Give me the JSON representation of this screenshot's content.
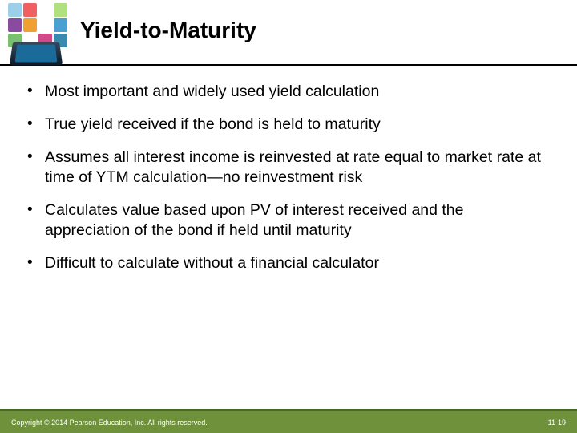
{
  "slide": {
    "title": "Yield-to-Maturity",
    "title_fontsize": 28,
    "title_weight": "bold",
    "title_color": "#000000",
    "header_rule_color": "#000000",
    "background_color": "#ffffff",
    "bullets": [
      "Most important and widely used yield calculation",
      "True yield received if the bond is held to maturity",
      "Assumes all interest income is reinvested at rate equal to market rate at time of YTM calculation—no reinvestment risk",
      "Calculates value based upon PV of interest received and the appreciation of the bond if held until maturity",
      "Difficult to calculate without a financial calculator"
    ],
    "bullet_fontsize": 19.5,
    "bullet_color": "#000000",
    "logo_icon_colors": [
      "#9bd0e8",
      "#f06060",
      "#ffffff",
      "#b0e080",
      "#8a4aa0",
      "#f0a030",
      "#ffffff",
      "#4aa0d0",
      "#7ac070",
      "#ffffff",
      "#d04a8a",
      "#3a8ab0"
    ]
  },
  "footer": {
    "copyright": "Copyright © 2014 Pearson Education, Inc. All rights reserved.",
    "page_number": "11-19",
    "background_color": "#6f913c",
    "accent_color": "#4a6a1f",
    "text_color": "#ffffff",
    "fontsize": 9
  }
}
